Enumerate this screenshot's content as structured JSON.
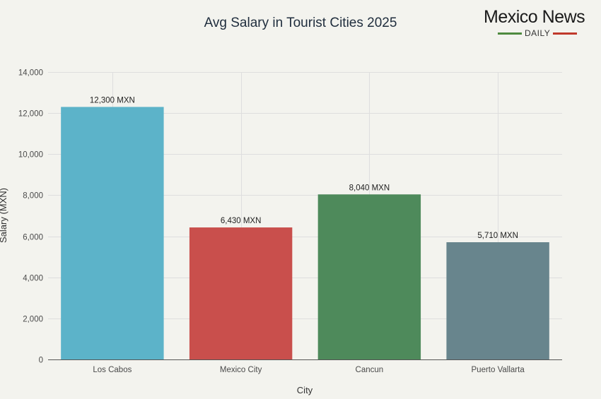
{
  "chart_data": {
    "type": "bar",
    "title": "Avg Salary in Tourist Cities 2025",
    "xlabel": "City",
    "ylabel": "Salary (MXN)",
    "categories": [
      "Los Cabos",
      "Mexico City",
      "Cancun",
      "Puerto Vallarta"
    ],
    "values": [
      12300,
      6430,
      8040,
      5710
    ],
    "data_labels": [
      "12,300 MXN",
      "6,430 MXN",
      "8,040 MXN",
      "5,710 MXN"
    ],
    "colors": [
      "#5cb3c9",
      "#c94f4c",
      "#4e8a5b",
      "#68858d"
    ],
    "ylim": [
      0,
      14000
    ],
    "yticks": [
      0,
      2000,
      4000,
      6000,
      8000,
      10000,
      12000,
      14000
    ],
    "ytick_labels": [
      "0",
      "2,000",
      "4,000",
      "6,000",
      "8,000",
      "10,000",
      "12,000",
      "14,000"
    ],
    "grid": true,
    "legend": false
  },
  "logo": {
    "name": "Mexico News",
    "sub": "DAILY",
    "colors": [
      "#4e8a3f",
      "#c0392b"
    ]
  }
}
